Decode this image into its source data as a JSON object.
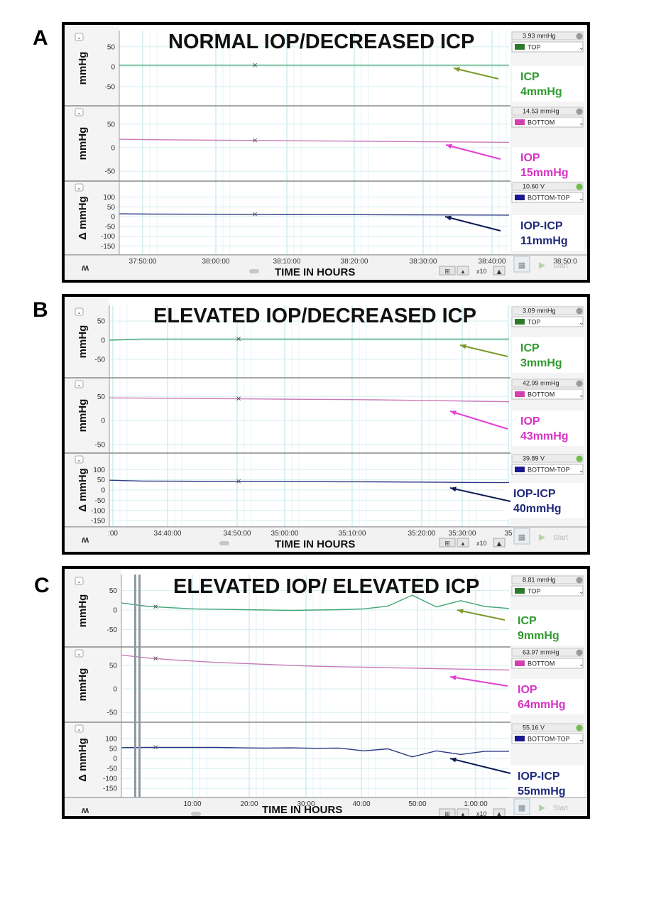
{
  "panel_letters": [
    "A",
    "B",
    "C"
  ],
  "chart_data": [
    {
      "type": "line",
      "title": "NORMAL IOP/DECREASED ICP",
      "xlabel": "TIME IN HOURS",
      "x_ticks": [
        "37:50:00",
        "38:00:00",
        "38:10:00",
        "38:20:00",
        "38:30:00",
        "38:40:00",
        "38:50:0"
      ],
      "channels": [
        {
          "ylabel": "mmHg",
          "ylim": [
            -80,
            80
          ],
          "ticks": [
            "50",
            "0",
            "-50"
          ],
          "tick_values": [
            50,
            0,
            -50
          ],
          "color": "#3fa574",
          "reading": "3.93 mmHg",
          "channel_name": "TOP",
          "swatch": "#2c7a2c",
          "values": [
            4,
            4,
            4,
            4,
            4,
            4,
            4,
            4,
            4,
            4,
            4,
            4,
            4
          ],
          "annotation": {
            "name": "ICP",
            "value": "4mmHg",
            "color": "#2f9a2f",
            "arrow": "#7a9a2a"
          }
        },
        {
          "ylabel": "mmHg",
          "ylim": [
            -80,
            80
          ],
          "ticks": [
            "50",
            "0",
            "-50"
          ],
          "tick_values": [
            50,
            0,
            -50
          ],
          "color": "#c97ab8",
          "reading": "14.53 mmHg",
          "channel_name": "BOTTOM",
          "swatch": "#d63fb0",
          "values": [
            18,
            17,
            16.5,
            16,
            15.5,
            15,
            14.5,
            14,
            13.5,
            13,
            12.5,
            12,
            11.5
          ],
          "annotation": {
            "name": "IOP",
            "value": "15mmHg",
            "color": "#d633c4",
            "arrow": "#e23fd0"
          }
        },
        {
          "ylabel": "Δ mmHg",
          "ylim": [
            -160,
            160
          ],
          "ticks": [
            "100",
            "50",
            "0",
            "-50",
            "-100",
            "-150"
          ],
          "tick_values": [
            100,
            50,
            0,
            -50,
            -100,
            -150
          ],
          "color": "#2c3a85",
          "reading": "10.60 V",
          "channel_name": "BOTTOM-TOP",
          "swatch": "#1a1a8c",
          "values": [
            14,
            13,
            12.5,
            12,
            11.5,
            11,
            10.5,
            10,
            9.5,
            9,
            8.5,
            8,
            7.5
          ],
          "annotation": {
            "name": "IOP-ICP",
            "value": "11mmHg",
            "color": "#1f2a7a",
            "arrow": "#0d1a55"
          }
        }
      ]
    },
    {
      "type": "line",
      "title": "ELEVATED IOP/DECREASED ICP",
      "xlabel": "TIME IN HOURS",
      "x_ticks": [
        ":00",
        "34:40:00",
        "34:50:00",
        "35:00:00",
        "35:10:00",
        "35:20:00",
        "35:30:00",
        "35"
      ],
      "channels": [
        {
          "ylabel": "mmHg",
          "ylim": [
            -80,
            80
          ],
          "ticks": [
            "50",
            "0",
            "-50"
          ],
          "tick_values": [
            50,
            0,
            -50
          ],
          "color": "#3fa574",
          "reading": "3.09 mmHg",
          "channel_name": "TOP",
          "swatch": "#2c7a2c",
          "values": [
            0,
            3,
            3,
            3,
            3,
            3,
            3,
            3,
            3,
            3,
            3,
            3,
            3
          ],
          "annotation": {
            "name": "ICP",
            "value": "3mmHg",
            "color": "#2f9a2f",
            "arrow": "#7a9a2a"
          }
        },
        {
          "ylabel": "mmHg",
          "ylim": [
            -80,
            80
          ],
          "ticks": [
            "50",
            "0",
            "-50"
          ],
          "tick_values": [
            50,
            0,
            -50
          ],
          "color": "#c97ab8",
          "reading": "42.99 mmHg",
          "channel_name": "BOTTOM",
          "swatch": "#d63fb0",
          "values": [
            47,
            46.5,
            46,
            45.5,
            45,
            44.5,
            44,
            43.5,
            43,
            42,
            41,
            40,
            39
          ],
          "annotation": {
            "name": "IOP",
            "value": "43mmHg",
            "color": "#d633c4",
            "arrow": "#e23fd0"
          }
        },
        {
          "ylabel": "Δ mmHg",
          "ylim": [
            -160,
            160
          ],
          "ticks": [
            "100",
            "50",
            "0",
            "-50",
            "-100",
            "-150"
          ],
          "tick_values": [
            100,
            50,
            0,
            -50,
            -100,
            -150
          ],
          "color": "#2c3a85",
          "reading": "39.89 V",
          "channel_name": "BOTTOM-TOP",
          "swatch": "#1a1a8c",
          "values": [
            48,
            44,
            43,
            42.5,
            42,
            41.5,
            41,
            40.5,
            40,
            39,
            38,
            37,
            36
          ],
          "annotation": {
            "name": "IOP-ICP",
            "value": "40mmHg",
            "color": "#1f2a7a",
            "arrow": "#0d1a55"
          }
        }
      ]
    },
    {
      "type": "line",
      "title": "ELEVATED IOP/ ELEVATED ICP",
      "xlabel": "TIME IN HOURS",
      "x_ticks": [
        "10:00",
        "20:00",
        "30:00",
        "40:00",
        "50:00",
        "1:00:00"
      ],
      "channels": [
        {
          "ylabel": "mmHg",
          "ylim": [
            -80,
            80
          ],
          "ticks": [
            "50",
            "0",
            "-50"
          ],
          "tick_values": [
            50,
            0,
            -50
          ],
          "color": "#3fa574",
          "reading": "8.81 mmHg",
          "channel_name": "TOP",
          "swatch": "#2c7a2c",
          "values": [
            18,
            10,
            6,
            3,
            2,
            1,
            0,
            -1,
            0,
            1,
            3,
            10,
            38,
            8,
            24,
            9,
            4
          ],
          "annotation": {
            "name": "ICP",
            "value": "9mmHg",
            "color": "#2f9a2f",
            "arrow": "#7a9a2a"
          }
        },
        {
          "ylabel": "mmHg",
          "ylim": [
            -80,
            80
          ],
          "ticks": [
            "50",
            "0",
            "-50"
          ],
          "tick_values": [
            50,
            0,
            -50
          ],
          "color": "#c97ab8",
          "reading": "63.97 mmHg",
          "channel_name": "BOTTOM",
          "swatch": "#d63fb0",
          "values": [
            72,
            66,
            62,
            59,
            56,
            54,
            52,
            50,
            48,
            47,
            46,
            45,
            44,
            43,
            42,
            41,
            40
          ],
          "annotation": {
            "name": "IOP",
            "value": "64mmHg",
            "color": "#d633c4",
            "arrow": "#e23fd0"
          }
        },
        {
          "ylabel": "Δ mmHg",
          "ylim": [
            -160,
            160
          ],
          "ticks": [
            "100",
            "50",
            "0",
            "-50",
            "-100",
            "-150"
          ],
          "tick_values": [
            100,
            50,
            0,
            -50,
            -100,
            -150
          ],
          "color": "#2c3a85",
          "reading": "55.16 V",
          "channel_name": "BOTTOM-TOP",
          "swatch": "#1a1a8c",
          "values": [
            54,
            55,
            55,
            55,
            55,
            53,
            52,
            53,
            51,
            52,
            38,
            48,
            8,
            38,
            20,
            36,
            36
          ],
          "annotation": {
            "name": "IOP-ICP",
            "value": "55mmHg",
            "color": "#1f2a7a",
            "arrow": "#0d1a55"
          }
        }
      ]
    }
  ],
  "ui": {
    "x_zoom": "x10",
    "start_label": "Start"
  }
}
